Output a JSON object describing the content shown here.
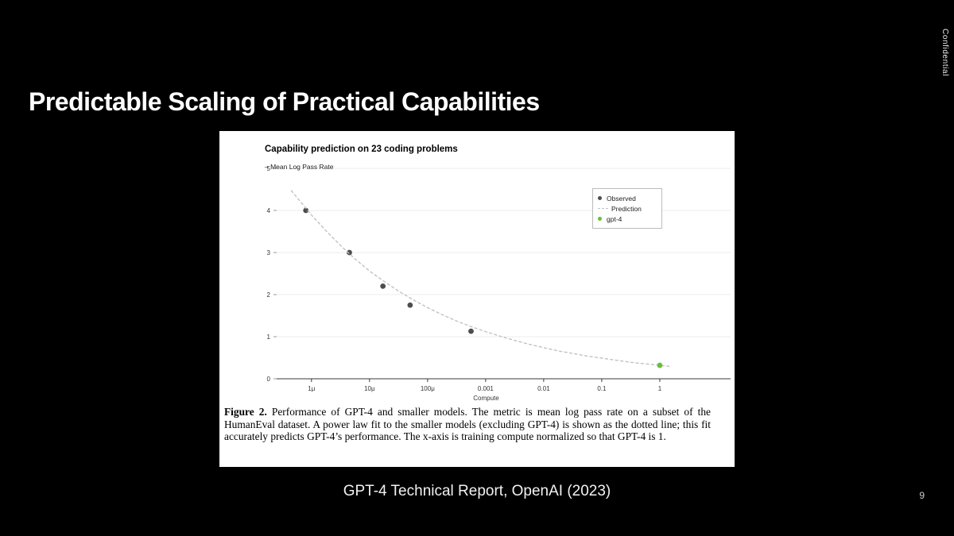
{
  "slide": {
    "title": "Predictable Scaling of Practical Capabilities",
    "confidential_label": "Confidential",
    "footer_citation": "GPT-4 Technical Report, OpenAI (2023)",
    "page_number": "9"
  },
  "figure": {
    "caption_lead": "Figure 2.",
    "caption_body": " Performance of GPT-4 and smaller models. The metric is mean log pass rate on a subset of the HumanEval dataset. A power law fit to the smaller models (excluding GPT-4) is shown as the dotted line; this fit accurately predicts GPT-4’s performance. The x-axis is training compute normalized so that GPT-4 is 1."
  },
  "chart_data": {
    "type": "scatter",
    "title": "Capability prediction on 23 coding problems",
    "y_axis_key": "– Mean Log Pass Rate",
    "xlabel": "Compute",
    "x_scale": "log",
    "x_domain_log10": [
      -6.6,
      1.22
    ],
    "ylim": [
      0,
      5
    ],
    "grid": "horizontal",
    "colors": {
      "observed": "#4d4d4d",
      "prediction": "#c2c2c2",
      "gpt4": "#67bf3d",
      "gridline": "#ececec",
      "axis": "#3a3a3a",
      "tick_text": "#333333"
    },
    "x_ticks": [
      {
        "value": 1e-06,
        "label": "1μ"
      },
      {
        "value": 1e-05,
        "label": "10μ"
      },
      {
        "value": 0.0001,
        "label": "100μ"
      },
      {
        "value": 0.001,
        "label": "0.001"
      },
      {
        "value": 0.01,
        "label": "0.01"
      },
      {
        "value": 0.1,
        "label": "0.1"
      },
      {
        "value": 1,
        "label": "1"
      }
    ],
    "y_ticks": [
      0,
      1,
      2,
      3,
      4,
      5
    ],
    "legend": [
      {
        "label": "Observed",
        "swatch": "dot",
        "color": "#4d4d4d"
      },
      {
        "label": "Prediction",
        "swatch": "dashed-line",
        "color": "#c2c2c2"
      },
      {
        "label": "gpt-4",
        "swatch": "dot",
        "color": "#67bf3d"
      }
    ],
    "series": [
      {
        "name": "Observed",
        "render": "dots",
        "color": "#4d4d4d",
        "points": [
          [
            8e-07,
            4.0
          ],
          [
            4.5e-06,
            3.0
          ],
          [
            1.7e-05,
            2.2
          ],
          [
            5e-05,
            1.75
          ],
          [
            0.00056,
            1.13
          ]
        ]
      },
      {
        "name": "Prediction",
        "render": "dashed-line",
        "color": "#c2c2c2",
        "points": [
          [
            4.5e-07,
            4.47
          ],
          [
            7e-07,
            4.15
          ],
          [
            1e-06,
            3.89
          ],
          [
            1.8e-06,
            3.51
          ],
          [
            3.2e-06,
            3.16
          ],
          [
            5.6e-06,
            2.85
          ],
          [
            1e-05,
            2.56
          ],
          [
            1.8e-05,
            2.31
          ],
          [
            3.2e-05,
            2.08
          ],
          [
            5.6e-05,
            1.88
          ],
          [
            0.0001,
            1.69
          ],
          [
            0.00018,
            1.52
          ],
          [
            0.00032,
            1.37
          ],
          [
            0.00056,
            1.24
          ],
          [
            0.001,
            1.12
          ],
          [
            0.0018,
            1.01
          ],
          [
            0.0032,
            0.91
          ],
          [
            0.0056,
            0.82
          ],
          [
            0.01,
            0.74
          ],
          [
            0.018,
            0.66
          ],
          [
            0.032,
            0.6
          ],
          [
            0.056,
            0.54
          ],
          [
            0.1,
            0.49
          ],
          [
            0.18,
            0.44
          ],
          [
            0.32,
            0.39
          ],
          [
            0.56,
            0.355
          ],
          [
            1,
            0.32
          ],
          [
            1.6,
            0.29
          ]
        ]
      },
      {
        "name": "gpt-4",
        "render": "dots",
        "color": "#67bf3d",
        "points": [
          [
            1,
            0.32
          ]
        ]
      }
    ]
  }
}
